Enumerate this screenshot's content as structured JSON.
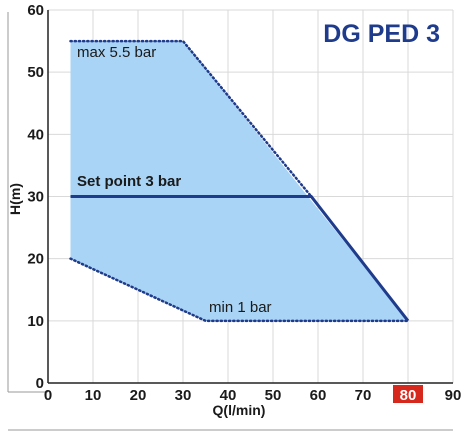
{
  "chart_data": {
    "type": "area",
    "title": "DG PED 3",
    "xlabel": "Q(l/min)",
    "ylabel": "H(m)",
    "xlim": [
      0,
      90
    ],
    "ylim": [
      0,
      60
    ],
    "xticks": [
      0,
      10,
      20,
      30,
      40,
      50,
      60,
      70,
      80,
      90
    ],
    "yticks": [
      0,
      10,
      20,
      30,
      40,
      50,
      60
    ],
    "highlighted_xtick": 80,
    "grid": true,
    "region": {
      "polygon": [
        [
          5,
          55
        ],
        [
          30,
          55
        ],
        [
          80,
          10
        ],
        [
          35,
          10
        ],
        [
          5,
          20
        ]
      ]
    },
    "series": [
      {
        "name": "max 5.5 bar",
        "style": "dotted",
        "x": [
          5,
          30,
          58.5
        ],
        "y": [
          55,
          55,
          30
        ]
      },
      {
        "name": "Set point 3 bar",
        "style": "solid",
        "x": [
          5,
          58.5,
          80
        ],
        "y": [
          30,
          30,
          10
        ]
      },
      {
        "name": "min 1 bar",
        "style": "dotted",
        "x": [
          5,
          35,
          80
        ],
        "y": [
          20,
          10,
          10
        ]
      }
    ],
    "annotations": [
      "max 5.5 bar",
      "Set point 3 bar",
      "min 1 bar"
    ],
    "colors": {
      "fill": "#a9d4f5",
      "line": "#1f3b8c",
      "title": "#1f3b8c",
      "grid": "#d9d9d9",
      "highlight": "#d7281e"
    }
  }
}
